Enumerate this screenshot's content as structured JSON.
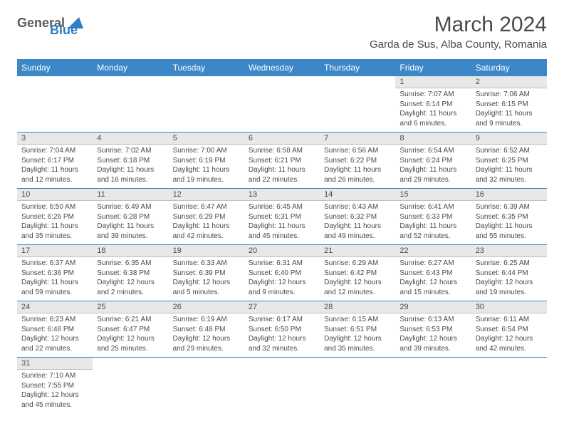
{
  "logo": {
    "part1": "General",
    "part2": "Blue"
  },
  "title": "March 2024",
  "location": "Garda de Sus, Alba County, Romania",
  "weekdays": [
    "Sunday",
    "Monday",
    "Tuesday",
    "Wednesday",
    "Thursday",
    "Friday",
    "Saturday"
  ],
  "colors": {
    "header_bg": "#3b87c8",
    "header_text": "#ffffff",
    "daynum_bg": "#e8e8e8",
    "text": "#4a4a4a"
  },
  "weeks": [
    [
      {
        "n": "",
        "sunrise": "",
        "sunset": "",
        "daylight": ""
      },
      {
        "n": "",
        "sunrise": "",
        "sunset": "",
        "daylight": ""
      },
      {
        "n": "",
        "sunrise": "",
        "sunset": "",
        "daylight": ""
      },
      {
        "n": "",
        "sunrise": "",
        "sunset": "",
        "daylight": ""
      },
      {
        "n": "",
        "sunrise": "",
        "sunset": "",
        "daylight": ""
      },
      {
        "n": "1",
        "sunrise": "Sunrise: 7:07 AM",
        "sunset": "Sunset: 6:14 PM",
        "daylight": "Daylight: 11 hours and 6 minutes."
      },
      {
        "n": "2",
        "sunrise": "Sunrise: 7:06 AM",
        "sunset": "Sunset: 6:15 PM",
        "daylight": "Daylight: 11 hours and 9 minutes."
      }
    ],
    [
      {
        "n": "3",
        "sunrise": "Sunrise: 7:04 AM",
        "sunset": "Sunset: 6:17 PM",
        "daylight": "Daylight: 11 hours and 12 minutes."
      },
      {
        "n": "4",
        "sunrise": "Sunrise: 7:02 AM",
        "sunset": "Sunset: 6:18 PM",
        "daylight": "Daylight: 11 hours and 16 minutes."
      },
      {
        "n": "5",
        "sunrise": "Sunrise: 7:00 AM",
        "sunset": "Sunset: 6:19 PM",
        "daylight": "Daylight: 11 hours and 19 minutes."
      },
      {
        "n": "6",
        "sunrise": "Sunrise: 6:58 AM",
        "sunset": "Sunset: 6:21 PM",
        "daylight": "Daylight: 11 hours and 22 minutes."
      },
      {
        "n": "7",
        "sunrise": "Sunrise: 6:56 AM",
        "sunset": "Sunset: 6:22 PM",
        "daylight": "Daylight: 11 hours and 26 minutes."
      },
      {
        "n": "8",
        "sunrise": "Sunrise: 6:54 AM",
        "sunset": "Sunset: 6:24 PM",
        "daylight": "Daylight: 11 hours and 29 minutes."
      },
      {
        "n": "9",
        "sunrise": "Sunrise: 6:52 AM",
        "sunset": "Sunset: 6:25 PM",
        "daylight": "Daylight: 11 hours and 32 minutes."
      }
    ],
    [
      {
        "n": "10",
        "sunrise": "Sunrise: 6:50 AM",
        "sunset": "Sunset: 6:26 PM",
        "daylight": "Daylight: 11 hours and 35 minutes."
      },
      {
        "n": "11",
        "sunrise": "Sunrise: 6:49 AM",
        "sunset": "Sunset: 6:28 PM",
        "daylight": "Daylight: 11 hours and 39 minutes."
      },
      {
        "n": "12",
        "sunrise": "Sunrise: 6:47 AM",
        "sunset": "Sunset: 6:29 PM",
        "daylight": "Daylight: 11 hours and 42 minutes."
      },
      {
        "n": "13",
        "sunrise": "Sunrise: 6:45 AM",
        "sunset": "Sunset: 6:31 PM",
        "daylight": "Daylight: 11 hours and 45 minutes."
      },
      {
        "n": "14",
        "sunrise": "Sunrise: 6:43 AM",
        "sunset": "Sunset: 6:32 PM",
        "daylight": "Daylight: 11 hours and 49 minutes."
      },
      {
        "n": "15",
        "sunrise": "Sunrise: 6:41 AM",
        "sunset": "Sunset: 6:33 PM",
        "daylight": "Daylight: 11 hours and 52 minutes."
      },
      {
        "n": "16",
        "sunrise": "Sunrise: 6:39 AM",
        "sunset": "Sunset: 6:35 PM",
        "daylight": "Daylight: 11 hours and 55 minutes."
      }
    ],
    [
      {
        "n": "17",
        "sunrise": "Sunrise: 6:37 AM",
        "sunset": "Sunset: 6:36 PM",
        "daylight": "Daylight: 11 hours and 59 minutes."
      },
      {
        "n": "18",
        "sunrise": "Sunrise: 6:35 AM",
        "sunset": "Sunset: 6:38 PM",
        "daylight": "Daylight: 12 hours and 2 minutes."
      },
      {
        "n": "19",
        "sunrise": "Sunrise: 6:33 AM",
        "sunset": "Sunset: 6:39 PM",
        "daylight": "Daylight: 12 hours and 5 minutes."
      },
      {
        "n": "20",
        "sunrise": "Sunrise: 6:31 AM",
        "sunset": "Sunset: 6:40 PM",
        "daylight": "Daylight: 12 hours and 9 minutes."
      },
      {
        "n": "21",
        "sunrise": "Sunrise: 6:29 AM",
        "sunset": "Sunset: 6:42 PM",
        "daylight": "Daylight: 12 hours and 12 minutes."
      },
      {
        "n": "22",
        "sunrise": "Sunrise: 6:27 AM",
        "sunset": "Sunset: 6:43 PM",
        "daylight": "Daylight: 12 hours and 15 minutes."
      },
      {
        "n": "23",
        "sunrise": "Sunrise: 6:25 AM",
        "sunset": "Sunset: 6:44 PM",
        "daylight": "Daylight: 12 hours and 19 minutes."
      }
    ],
    [
      {
        "n": "24",
        "sunrise": "Sunrise: 6:23 AM",
        "sunset": "Sunset: 6:46 PM",
        "daylight": "Daylight: 12 hours and 22 minutes."
      },
      {
        "n": "25",
        "sunrise": "Sunrise: 6:21 AM",
        "sunset": "Sunset: 6:47 PM",
        "daylight": "Daylight: 12 hours and 25 minutes."
      },
      {
        "n": "26",
        "sunrise": "Sunrise: 6:19 AM",
        "sunset": "Sunset: 6:48 PM",
        "daylight": "Daylight: 12 hours and 29 minutes."
      },
      {
        "n": "27",
        "sunrise": "Sunrise: 6:17 AM",
        "sunset": "Sunset: 6:50 PM",
        "daylight": "Daylight: 12 hours and 32 minutes."
      },
      {
        "n": "28",
        "sunrise": "Sunrise: 6:15 AM",
        "sunset": "Sunset: 6:51 PM",
        "daylight": "Daylight: 12 hours and 35 minutes."
      },
      {
        "n": "29",
        "sunrise": "Sunrise: 6:13 AM",
        "sunset": "Sunset: 6:53 PM",
        "daylight": "Daylight: 12 hours and 39 minutes."
      },
      {
        "n": "30",
        "sunrise": "Sunrise: 6:11 AM",
        "sunset": "Sunset: 6:54 PM",
        "daylight": "Daylight: 12 hours and 42 minutes."
      }
    ],
    [
      {
        "n": "31",
        "sunrise": "Sunrise: 7:10 AM",
        "sunset": "Sunset: 7:55 PM",
        "daylight": "Daylight: 12 hours and 45 minutes."
      },
      {
        "n": "",
        "sunrise": "",
        "sunset": "",
        "daylight": ""
      },
      {
        "n": "",
        "sunrise": "",
        "sunset": "",
        "daylight": ""
      },
      {
        "n": "",
        "sunrise": "",
        "sunset": "",
        "daylight": ""
      },
      {
        "n": "",
        "sunrise": "",
        "sunset": "",
        "daylight": ""
      },
      {
        "n": "",
        "sunrise": "",
        "sunset": "",
        "daylight": ""
      },
      {
        "n": "",
        "sunrise": "",
        "sunset": "",
        "daylight": ""
      }
    ]
  ]
}
